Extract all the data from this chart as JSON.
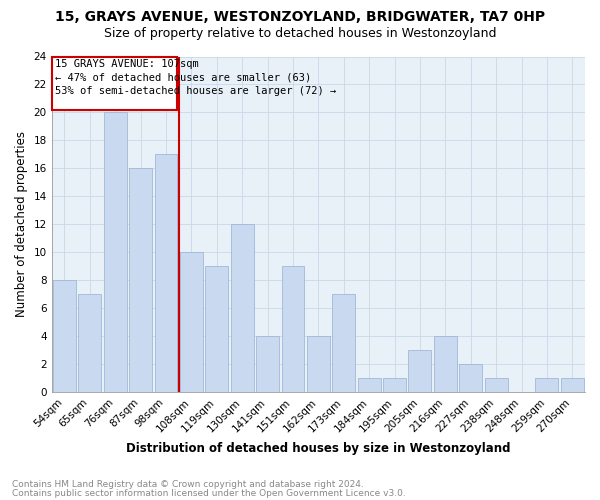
{
  "title": "15, GRAYS AVENUE, WESTONZOYLAND, BRIDGWATER, TA7 0HP",
  "subtitle": "Size of property relative to detached houses in Westonzoyland",
  "xlabel": "Distribution of detached houses by size in Westonzoyland",
  "ylabel": "Number of detached properties",
  "footnote1": "Contains HM Land Registry data © Crown copyright and database right 2024.",
  "footnote2": "Contains public sector information licensed under the Open Government Licence v3.0.",
  "categories": [
    "54sqm",
    "65sqm",
    "76sqm",
    "87sqm",
    "98sqm",
    "108sqm",
    "119sqm",
    "130sqm",
    "141sqm",
    "151sqm",
    "162sqm",
    "173sqm",
    "184sqm",
    "195sqm",
    "205sqm",
    "216sqm",
    "227sqm",
    "238sqm",
    "248sqm",
    "259sqm",
    "270sqm"
  ],
  "values": [
    8,
    7,
    20,
    16,
    17,
    10,
    9,
    12,
    4,
    9,
    4,
    7,
    1,
    1,
    3,
    4,
    2,
    1,
    0,
    1,
    1
  ],
  "bar_color": "#c9d9f0",
  "bar_edge_color": "#a0b8d8",
  "vline_color": "#cc0000",
  "vline_index": 5,
  "annotation_line1": "15 GRAYS AVENUE: 107sqm",
  "annotation_line2": "← 47% of detached houses are smaller (63)",
  "annotation_line3": "53% of semi-detached houses are larger (72) →",
  "annotation_box_color": "#cc0000",
  "ylim": [
    0,
    24
  ],
  "yticks": [
    0,
    2,
    4,
    6,
    8,
    10,
    12,
    14,
    16,
    18,
    20,
    22,
    24
  ],
  "grid_color": "#c8d8e8",
  "background_color": "#e8f0f8",
  "title_fontsize": 10,
  "subtitle_fontsize": 9,
  "xlabel_fontsize": 8.5,
  "ylabel_fontsize": 8.5,
  "tick_fontsize": 7.5,
  "annotation_fontsize": 7.5,
  "footnote_fontsize": 6.5
}
